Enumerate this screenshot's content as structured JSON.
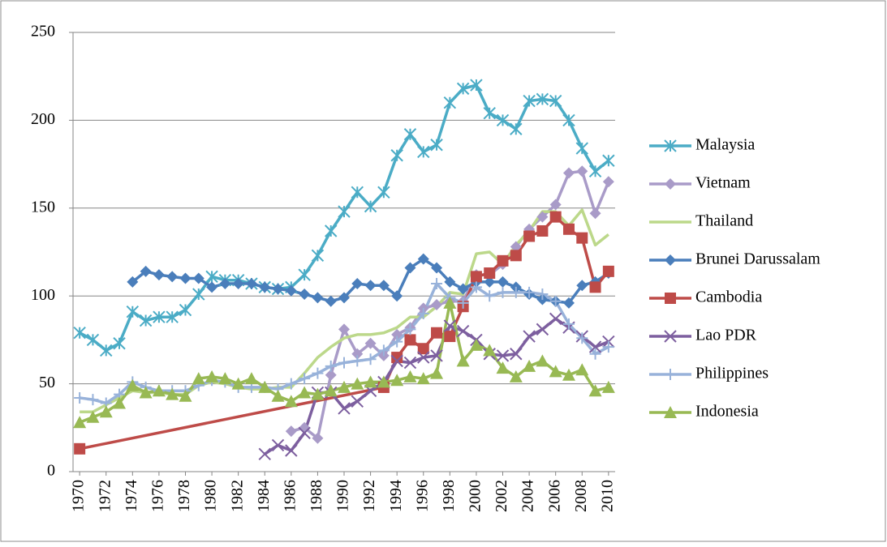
{
  "chart_data": {
    "type": "line",
    "connect_gaps": true,
    "grid": true,
    "legend": "right",
    "x": [
      1970,
      1971,
      1972,
      1973,
      1974,
      1975,
      1976,
      1977,
      1978,
      1979,
      1980,
      1981,
      1982,
      1983,
      1984,
      1985,
      1986,
      1987,
      1988,
      1989,
      1990,
      1991,
      1992,
      1993,
      1994,
      1995,
      1996,
      1997,
      1998,
      1999,
      2000,
      2001,
      2002,
      2003,
      2004,
      2005,
      2006,
      2007,
      2008,
      2009,
      2010
    ],
    "xlim": [
      1969.5,
      2010.5
    ],
    "xticks": [
      1970,
      1972,
      1974,
      1976,
      1978,
      1980,
      1982,
      1984,
      1986,
      1988,
      1990,
      1992,
      1994,
      1996,
      1998,
      2000,
      2002,
      2004,
      2006,
      2008,
      2010
    ],
    "ylim": [
      0,
      250
    ],
    "yticks": [
      0,
      50,
      100,
      150,
      200,
      250
    ],
    "series": [
      {
        "name": "Malaysia",
        "color": "#4bacc6",
        "marker": "asterisk",
        "values": [
          79,
          75,
          69,
          73,
          91,
          86,
          88,
          88,
          92,
          101,
          111,
          109,
          109,
          107,
          105,
          104,
          105,
          112,
          123,
          137,
          148,
          159,
          151,
          159,
          180,
          192,
          182,
          186,
          210,
          218,
          220,
          204,
          200,
          195,
          211,
          212,
          211,
          200,
          184,
          171,
          177
        ]
      },
      {
        "name": "Vietnam",
        "color": "#a99bc8",
        "marker": "diamond",
        "values": [
          null,
          null,
          null,
          null,
          null,
          null,
          null,
          null,
          null,
          null,
          null,
          null,
          null,
          null,
          null,
          null,
          23,
          25,
          19,
          55,
          81,
          67,
          73,
          66,
          78,
          82,
          93,
          95,
          97,
          97,
          112,
          112,
          118,
          128,
          138,
          145,
          152,
          170,
          171,
          147,
          165
        ]
      },
      {
        "name": "Thailand",
        "color": "#bcd88a",
        "marker": "none",
        "values": [
          34,
          34,
          38,
          42,
          46,
          45,
          45,
          44,
          44,
          49,
          51,
          50,
          48,
          47,
          47,
          48,
          48,
          56,
          65,
          71,
          76,
          78,
          78,
          79,
          82,
          88,
          88,
          94,
          102,
          101,
          124,
          125,
          118,
          129,
          137,
          148,
          148,
          140,
          149,
          129,
          135
        ]
      },
      {
        "name": "Brunei Darussalam",
        "color": "#4a7ebb",
        "marker": "diamond",
        "values": [
          null,
          null,
          null,
          null,
          108,
          114,
          112,
          111,
          110,
          110,
          105,
          107,
          107,
          107,
          105,
          104,
          103,
          101,
          99,
          97,
          99,
          107,
          106,
          106,
          100,
          116,
          121,
          116,
          108,
          104,
          108,
          108,
          108,
          105,
          101,
          98,
          97,
          96,
          106,
          108,
          113
        ]
      },
      {
        "name": "Cambodia",
        "color": "#be4b48",
        "marker": "square",
        "values": [
          13,
          null,
          null,
          null,
          null,
          null,
          null,
          null,
          null,
          null,
          null,
          null,
          null,
          null,
          null,
          null,
          null,
          null,
          null,
          null,
          null,
          null,
          null,
          48,
          65,
          75,
          70,
          79,
          77,
          94,
          111,
          113,
          120,
          123,
          134,
          137,
          145,
          138,
          133,
          105,
          114
        ]
      },
      {
        "name": "Lao PDR",
        "color": "#7d5f9f",
        "marker": "cross",
        "values": [
          null,
          null,
          null,
          null,
          null,
          null,
          null,
          null,
          null,
          null,
          null,
          null,
          null,
          null,
          10,
          15,
          12,
          22,
          45,
          45,
          36,
          40,
          46,
          51,
          63,
          62,
          65,
          66,
          83,
          80,
          75,
          67,
          66,
          67,
          77,
          81,
          87,
          82,
          77,
          71,
          74
        ]
      },
      {
        "name": "Philippines",
        "color": "#98b2da",
        "marker": "plus",
        "values": [
          42,
          41,
          39,
          44,
          51,
          48,
          46,
          46,
          46,
          49,
          52,
          51,
          48,
          48,
          48,
          47,
          50,
          53,
          56,
          60,
          62,
          63,
          64,
          69,
          74,
          81,
          90,
          107,
          99,
          96,
          105,
          100,
          102,
          102,
          102,
          101,
          97,
          84,
          76,
          67,
          71
        ]
      },
      {
        "name": "Indonesia",
        "color": "#98b954",
        "marker": "triangle",
        "values": [
          28,
          31,
          34,
          39,
          49,
          45,
          46,
          44,
          43,
          53,
          54,
          53,
          50,
          53,
          48,
          43,
          40,
          45,
          44,
          46,
          48,
          50,
          51,
          51,
          52,
          54,
          53,
          56,
          96,
          63,
          72,
          69,
          59,
          54,
          60,
          63,
          57,
          55,
          58,
          46,
          48
        ]
      }
    ]
  }
}
